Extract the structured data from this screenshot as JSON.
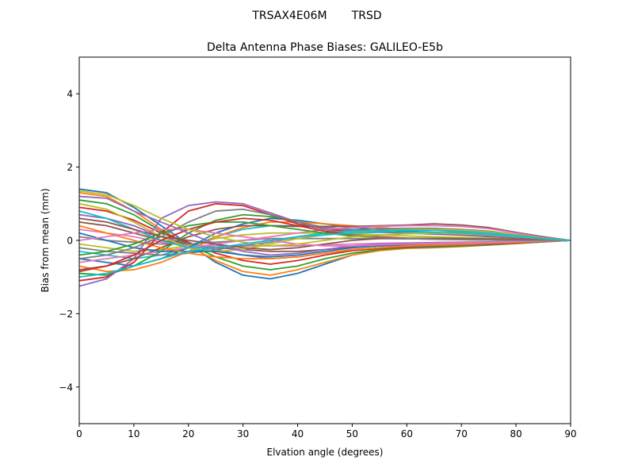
{
  "figure_title": "TRSAX4E06M       TRSD",
  "chart_data": {
    "type": "line",
    "title": "Delta Antenna Phase Biases: GALILEO-E5b",
    "xlabel": "Elvation angle (degrees)",
    "ylabel": "Bias from mean (mm)",
    "xlim": [
      0,
      90
    ],
    "ylim": [
      -5,
      5
    ],
    "xticks": [
      0,
      10,
      20,
      30,
      40,
      50,
      60,
      70,
      80,
      90
    ],
    "yticks": [
      -4,
      -2,
      0,
      2,
      4
    ],
    "ytick_labels": [
      "−4",
      "−2",
      "0",
      "2",
      "4"
    ],
    "grid": false,
    "legend": "none",
    "x": [
      0,
      5,
      10,
      15,
      20,
      25,
      30,
      35,
      40,
      45,
      50,
      55,
      60,
      65,
      70,
      75,
      80,
      85,
      90
    ],
    "series": [
      {
        "values": [
          1.4,
          1.3,
          0.9,
          0.4,
          -0.1,
          -0.6,
          -0.95,
          -1.05,
          -0.9,
          -0.65,
          -0.4,
          -0.25,
          -0.2,
          -0.18,
          -0.15,
          -0.12,
          -0.08,
          -0.04,
          0.0
        ]
      },
      {
        "values": [
          1.3,
          1.2,
          0.8,
          0.3,
          -0.15,
          -0.55,
          -0.85,
          -0.95,
          -0.8,
          -0.6,
          -0.4,
          -0.28,
          -0.22,
          -0.2,
          -0.17,
          -0.13,
          -0.09,
          -0.04,
          0.0
        ]
      },
      {
        "values": [
          1.1,
          1.0,
          0.7,
          0.25,
          -0.1,
          -0.45,
          -0.7,
          -0.8,
          -0.7,
          -0.5,
          -0.35,
          -0.25,
          -0.2,
          -0.18,
          -0.15,
          -0.12,
          -0.08,
          -0.04,
          0.0
        ]
      },
      {
        "values": [
          0.9,
          0.8,
          0.55,
          0.2,
          -0.05,
          -0.35,
          -0.55,
          -0.65,
          -0.55,
          -0.4,
          -0.28,
          -0.22,
          -0.18,
          -0.15,
          -0.13,
          -0.1,
          -0.07,
          -0.03,
          0.0
        ]
      },
      {
        "values": [
          0.7,
          0.6,
          0.4,
          0.1,
          -0.1,
          -0.25,
          -0.4,
          -0.5,
          -0.45,
          -0.35,
          -0.25,
          -0.2,
          -0.16,
          -0.14,
          -0.12,
          -0.09,
          -0.06,
          -0.03,
          0.0
        ]
      },
      {
        "values": [
          0.5,
          0.4,
          0.2,
          0.0,
          -0.1,
          -0.2,
          -0.25,
          -0.3,
          -0.3,
          -0.25,
          -0.18,
          -0.15,
          -0.12,
          -0.1,
          -0.09,
          -0.07,
          -0.05,
          -0.02,
          0.0
        ]
      },
      {
        "values": [
          0.3,
          0.2,
          0.1,
          -0.05,
          -0.15,
          -0.15,
          -0.15,
          -0.15,
          -0.15,
          -0.12,
          -0.1,
          -0.08,
          -0.07,
          -0.06,
          -0.05,
          -0.04,
          -0.03,
          -0.01,
          0.0
        ]
      },
      {
        "values": [
          0.1,
          0.0,
          -0.05,
          -0.1,
          -0.1,
          -0.05,
          0.0,
          0.05,
          0.05,
          0.05,
          0.05,
          0.05,
          0.04,
          0.04,
          0.03,
          0.02,
          0.02,
          0.01,
          0.0
        ]
      },
      {
        "values": [
          -0.1,
          -0.2,
          -0.3,
          -0.25,
          -0.15,
          0.05,
          0.15,
          0.2,
          0.2,
          0.2,
          0.18,
          0.15,
          0.12,
          0.1,
          0.08,
          0.06,
          0.04,
          0.02,
          0.0
        ]
      },
      {
        "values": [
          -0.3,
          -0.4,
          -0.5,
          -0.4,
          -0.2,
          0.1,
          0.3,
          0.4,
          0.4,
          0.35,
          0.3,
          0.25,
          0.2,
          0.17,
          0.14,
          0.1,
          0.07,
          0.03,
          0.0
        ]
      },
      {
        "values": [
          -0.5,
          -0.6,
          -0.7,
          -0.5,
          -0.2,
          0.2,
          0.45,
          0.6,
          0.55,
          0.45,
          0.35,
          0.3,
          0.25,
          0.22,
          0.18,
          0.13,
          0.09,
          0.04,
          0.0
        ]
      },
      {
        "values": [
          -0.7,
          -0.85,
          -0.8,
          -0.6,
          -0.3,
          0.1,
          0.35,
          0.5,
          0.5,
          0.45,
          0.4,
          0.35,
          0.3,
          0.28,
          0.22,
          0.16,
          0.1,
          0.05,
          0.0
        ]
      },
      {
        "values": [
          -0.9,
          -0.95,
          -0.7,
          -0.3,
          0.2,
          0.55,
          0.7,
          0.65,
          0.5,
          0.35,
          0.28,
          0.25,
          0.22,
          0.2,
          0.17,
          0.12,
          0.08,
          0.04,
          0.0
        ]
      },
      {
        "values": [
          -1.1,
          -1.0,
          -0.6,
          0.2,
          0.8,
          1.0,
          0.95,
          0.7,
          0.45,
          0.3,
          0.25,
          0.22,
          0.2,
          0.18,
          0.15,
          0.11,
          0.07,
          0.03,
          0.0
        ]
      },
      {
        "values": [
          -1.25,
          -1.05,
          -0.5,
          0.6,
          0.95,
          1.05,
          1.0,
          0.75,
          0.5,
          0.35,
          0.28,
          0.24,
          0.21,
          0.19,
          0.16,
          0.12,
          0.08,
          0.04,
          0.0
        ]
      },
      {
        "values": [
          -0.8,
          -0.7,
          -0.5,
          -0.2,
          0.1,
          0.3,
          0.4,
          0.4,
          0.38,
          0.38,
          0.38,
          0.4,
          0.42,
          0.45,
          0.42,
          0.35,
          0.22,
          0.1,
          0.0
        ]
      },
      {
        "values": [
          -0.6,
          -0.5,
          -0.4,
          -0.3,
          -0.2,
          -0.1,
          0.0,
          0.1,
          0.2,
          0.3,
          0.35,
          0.38,
          0.4,
          0.4,
          0.38,
          0.32,
          0.2,
          0.08,
          0.0
        ]
      },
      {
        "values": [
          -0.2,
          -0.3,
          -0.35,
          -0.4,
          -0.35,
          -0.25,
          -0.15,
          -0.05,
          0.1,
          0.2,
          0.28,
          0.32,
          0.33,
          0.33,
          0.3,
          0.25,
          0.16,
          0.07,
          0.0
        ]
      },
      {
        "values": [
          1.0,
          0.85,
          0.5,
          0.1,
          -0.2,
          -0.3,
          -0.25,
          -0.1,
          0.05,
          0.15,
          0.22,
          0.27,
          0.3,
          0.3,
          0.28,
          0.23,
          0.15,
          0.06,
          0.0
        ]
      },
      {
        "values": [
          0.8,
          0.6,
          0.3,
          0.0,
          -0.2,
          -0.2,
          -0.1,
          0.0,
          0.1,
          0.2,
          0.25,
          0.27,
          0.28,
          0.27,
          0.25,
          0.2,
          0.13,
          0.05,
          0.0
        ]
      },
      {
        "values": [
          0.2,
          0.0,
          -0.2,
          -0.3,
          -0.3,
          -0.3,
          -0.4,
          -0.45,
          -0.4,
          -0.3,
          -0.2,
          -0.15,
          -0.12,
          -0.1,
          -0.08,
          -0.06,
          -0.04,
          -0.02,
          0.0
        ]
      },
      {
        "values": [
          0.4,
          0.2,
          0.0,
          -0.2,
          -0.35,
          -0.45,
          -0.5,
          -0.5,
          -0.45,
          -0.35,
          -0.25,
          -0.2,
          -0.15,
          -0.12,
          -0.1,
          -0.07,
          -0.05,
          -0.02,
          0.0
        ]
      },
      {
        "values": [
          -0.4,
          -0.3,
          -0.1,
          0.2,
          0.4,
          0.5,
          0.5,
          0.4,
          0.3,
          0.2,
          0.12,
          0.08,
          0.05,
          0.03,
          0.02,
          0.01,
          0.0,
          0.0,
          0.0
        ]
      },
      {
        "values": [
          -0.85,
          -0.7,
          -0.4,
          0.0,
          0.3,
          0.5,
          0.6,
          0.55,
          0.4,
          0.25,
          0.15,
          0.1,
          0.06,
          0.04,
          0.03,
          0.02,
          0.01,
          0.0,
          0.0
        ]
      },
      {
        "values": [
          1.2,
          1.15,
          0.8,
          0.5,
          0.2,
          -0.1,
          -0.3,
          -0.4,
          -0.35,
          -0.25,
          -0.15,
          -0.1,
          -0.08,
          -0.06,
          -0.05,
          -0.04,
          -0.03,
          -0.01,
          0.0
        ]
      },
      {
        "values": [
          0.6,
          0.5,
          0.3,
          0.1,
          0.0,
          -0.1,
          -0.2,
          -0.25,
          -0.2,
          -0.1,
          0.0,
          0.05,
          0.06,
          0.06,
          0.05,
          0.04,
          0.03,
          0.01,
          0.0
        ]
      },
      {
        "values": [
          0.0,
          0.1,
          0.2,
          0.3,
          0.3,
          0.2,
          0.1,
          0.0,
          -0.1,
          -0.15,
          -0.15,
          -0.12,
          -0.1,
          -0.08,
          -0.06,
          -0.05,
          -0.03,
          -0.01,
          0.0
        ]
      },
      {
        "values": [
          -0.5,
          -0.4,
          -0.2,
          0.1,
          0.5,
          0.8,
          0.85,
          0.7,
          0.5,
          0.3,
          0.15,
          0.08,
          0.05,
          0.03,
          0.02,
          0.01,
          0.0,
          0.0,
          0.0
        ]
      },
      {
        "values": [
          1.35,
          1.25,
          0.95,
          0.6,
          0.3,
          0.1,
          -0.05,
          -0.15,
          -0.1,
          0.0,
          0.1,
          0.15,
          0.18,
          0.2,
          0.18,
          0.15,
          0.1,
          0.05,
          0.0
        ]
      },
      {
        "values": [
          -1.0,
          -0.9,
          -0.7,
          -0.5,
          -0.3,
          -0.2,
          -0.1,
          0.0,
          0.1,
          0.15,
          0.2,
          0.22,
          0.23,
          0.22,
          0.2,
          0.16,
          0.11,
          0.05,
          0.0
        ]
      }
    ]
  },
  "colors": [
    "#1f77b4",
    "#ff7f0e",
    "#2ca02c",
    "#d62728",
    "#9467bd",
    "#8c564b",
    "#e377c2",
    "#7f7f7f",
    "#bcbd22",
    "#17becf"
  ]
}
